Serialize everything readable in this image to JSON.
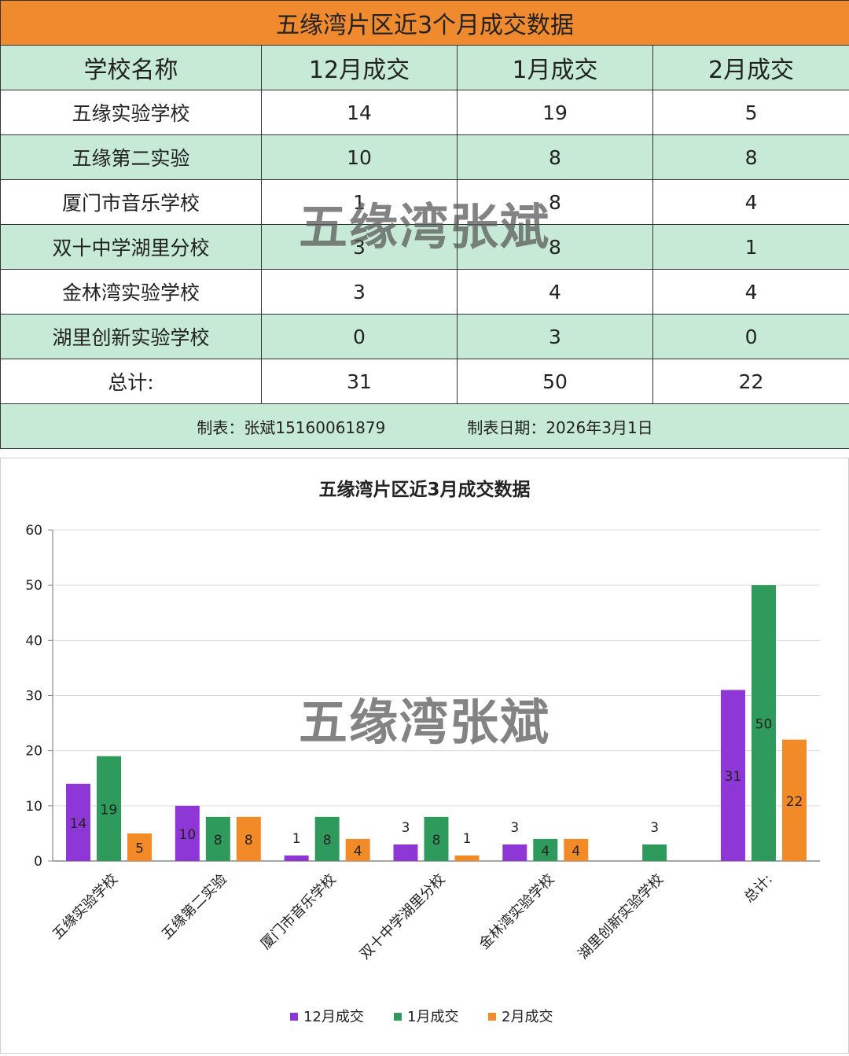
{
  "table": {
    "title": "五缘湾片区近3个月成交数据",
    "headers": [
      "学校名称",
      "12月成交",
      "1月成交",
      "2月成交"
    ],
    "rows": [
      [
        "五缘实验学校",
        "14",
        "19",
        "5"
      ],
      [
        "五缘第二实验",
        "10",
        "8",
        "8"
      ],
      [
        "厦门市音乐学校",
        "1",
        "8",
        "4"
      ],
      [
        "双十中学湖里分校",
        "3",
        "8",
        "1"
      ],
      [
        "金林湾实验学校",
        "3",
        "4",
        "4"
      ],
      [
        "湖里创新实验学校",
        "0",
        "3",
        "0"
      ],
      [
        "总计:",
        "31",
        "50",
        "22"
      ]
    ],
    "footer_maker": "制表：张斌15160061879",
    "footer_date": "制表日期：2026年3月1日"
  },
  "watermark": "五缘湾张斌",
  "chart_data": {
    "type": "bar",
    "title": "五缘湾片区近3月成交数据",
    "categories": [
      "五缘实验学校",
      "五缘第二实验",
      "厦门市音乐学校",
      "双十中学湖里分校",
      "金林湾实验学校",
      "湖里创新实验学校",
      "总计:"
    ],
    "series": [
      {
        "name": "12月成交",
        "color": "#8e37d6",
        "values": [
          14,
          10,
          1,
          3,
          3,
          0,
          31
        ]
      },
      {
        "name": "1月成交",
        "color": "#2e9a5b",
        "values": [
          19,
          8,
          8,
          8,
          4,
          3,
          50
        ]
      },
      {
        "name": "2月成交",
        "color": "#f28a27",
        "values": [
          5,
          8,
          4,
          1,
          4,
          0,
          22
        ]
      }
    ],
    "ylim": [
      0,
      60
    ],
    "yticks": [
      0,
      10,
      20,
      30,
      40,
      50,
      60
    ],
    "grid": true,
    "legend": "bottom"
  }
}
